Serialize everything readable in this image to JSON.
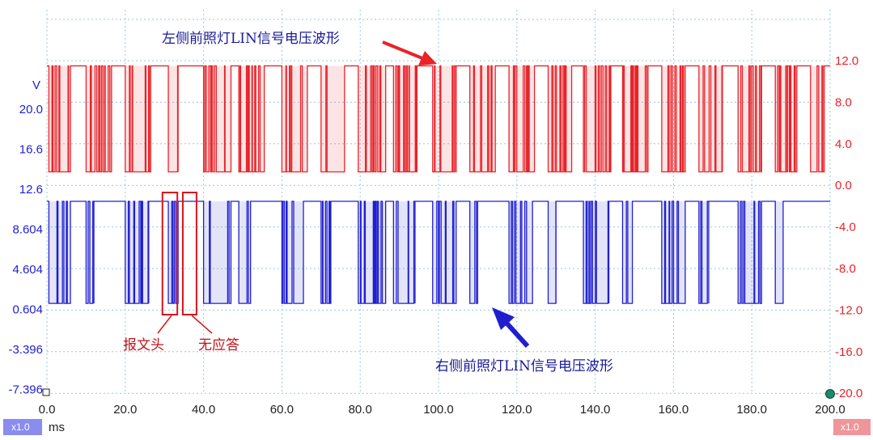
{
  "chart_data": {
    "type": "line",
    "x_unit": "ms",
    "xlim": [
      0,
      200
    ],
    "x_ticks": [
      "0.0",
      "20.0",
      "40.0",
      "60.0",
      "80.0",
      "100.0",
      "120.0",
      "140.0",
      "160.0",
      "180.0",
      "200.0"
    ],
    "left_axis": {
      "unit": "V",
      "color": "#1f1fd0",
      "ticks": [
        "20.0",
        "16.6",
        "12.6",
        "8.604",
        "4.604",
        "0.604",
        "-3.396",
        "-7.396"
      ]
    },
    "right_axis": {
      "color": "#e8242a",
      "ticks": [
        "12.0",
        "8.0",
        "4.0",
        "0.0",
        "-4.0",
        "-8.0",
        "-12.0",
        "-16.0",
        "-20.0"
      ]
    },
    "grid": true,
    "series": [
      {
        "name": "左侧前照灯LIN信号电压波形",
        "color": "#e8242a",
        "axis": "right",
        "high": 11.5,
        "low": 1.3,
        "bursts": [
          [
            0.5,
            6
          ],
          [
            10,
            16.5
          ],
          [
            20,
            26.5
          ],
          [
            31,
            33.5
          ],
          [
            40,
            47
          ],
          [
            49,
            55.5
          ],
          [
            60,
            66.5
          ],
          [
            70,
            76
          ],
          [
            79.5,
            86.5
          ],
          [
            88.5,
            94.5
          ],
          [
            98.5,
            104.5
          ],
          [
            108,
            114.5
          ],
          [
            118,
            124.5
          ],
          [
            128,
            134
          ],
          [
            137,
            144
          ],
          [
            147,
            153.5
          ],
          [
            157,
            163
          ],
          [
            166.5,
            172.5
          ],
          [
            176.5,
            182.5
          ],
          [
            186,
            191.5
          ],
          [
            195,
            198.5
          ]
        ]
      },
      {
        "name": "右侧前照灯LIN信号电压波形",
        "color": "#1f1fd0",
        "axis": "left",
        "high": 11.4,
        "low": 1.2,
        "bursts": [
          [
            0.5,
            6
          ],
          [
            10,
            12
          ],
          [
            20,
            26
          ],
          [
            31,
            33.5
          ],
          [
            40,
            47
          ],
          [
            49,
            52
          ],
          [
            60,
            65.5
          ],
          [
            70,
            72.5
          ],
          [
            79.5,
            86.5
          ],
          [
            88.5,
            94
          ],
          [
            98.5,
            104.5
          ],
          [
            108,
            110
          ],
          [
            118,
            124
          ],
          [
            128,
            130
          ],
          [
            137,
            143.5
          ],
          [
            147,
            149.5
          ],
          [
            157,
            163
          ],
          [
            166.5,
            169
          ],
          [
            176.5,
            182.5
          ],
          [
            186,
            188
          ]
        ]
      }
    ],
    "annotations": {
      "red_label": "左侧前照灯LIN信号电压波形",
      "blue_label": "右侧前照灯LIN信号电压波形",
      "header_label": "报文头",
      "no_response_label": "无应答",
      "header_box_ms": [
        29.5,
        33.3
      ],
      "no_response_box_ms": [
        34.7,
        38.2
      ]
    }
  },
  "footer": {
    "left_badge": "x1.0",
    "x_unit_label": "ms",
    "right_badge": "x1.0",
    "left_badge_color": "#8a8cf0",
    "right_badge_color": "#f0959a"
  }
}
